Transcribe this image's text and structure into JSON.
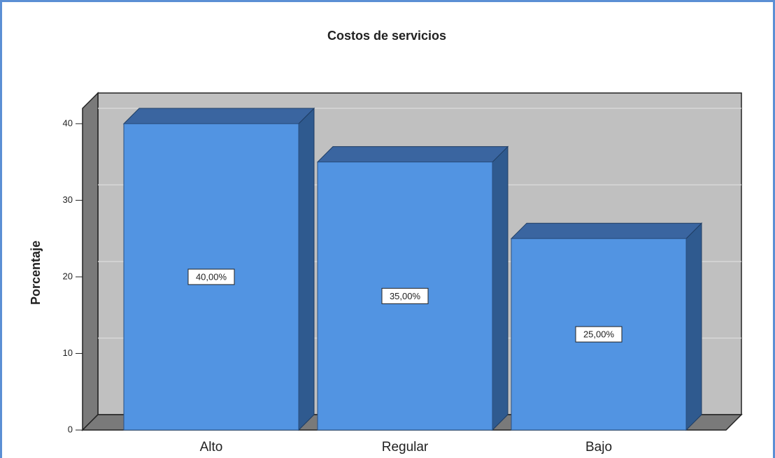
{
  "chart_data": {
    "type": "bar",
    "title": "Costos de servicios",
    "ylabel": "Porcentaje",
    "categories": [
      "Alto",
      "Regular",
      "Bajo"
    ],
    "values": [
      40,
      35,
      25
    ],
    "value_labels": [
      "40,00%",
      "35,00%",
      "25,00%"
    ],
    "color": "#5294e2",
    "ylim": [
      0,
      42
    ],
    "yticks": [
      0,
      10,
      20,
      30,
      40
    ],
    "grid": true
  }
}
